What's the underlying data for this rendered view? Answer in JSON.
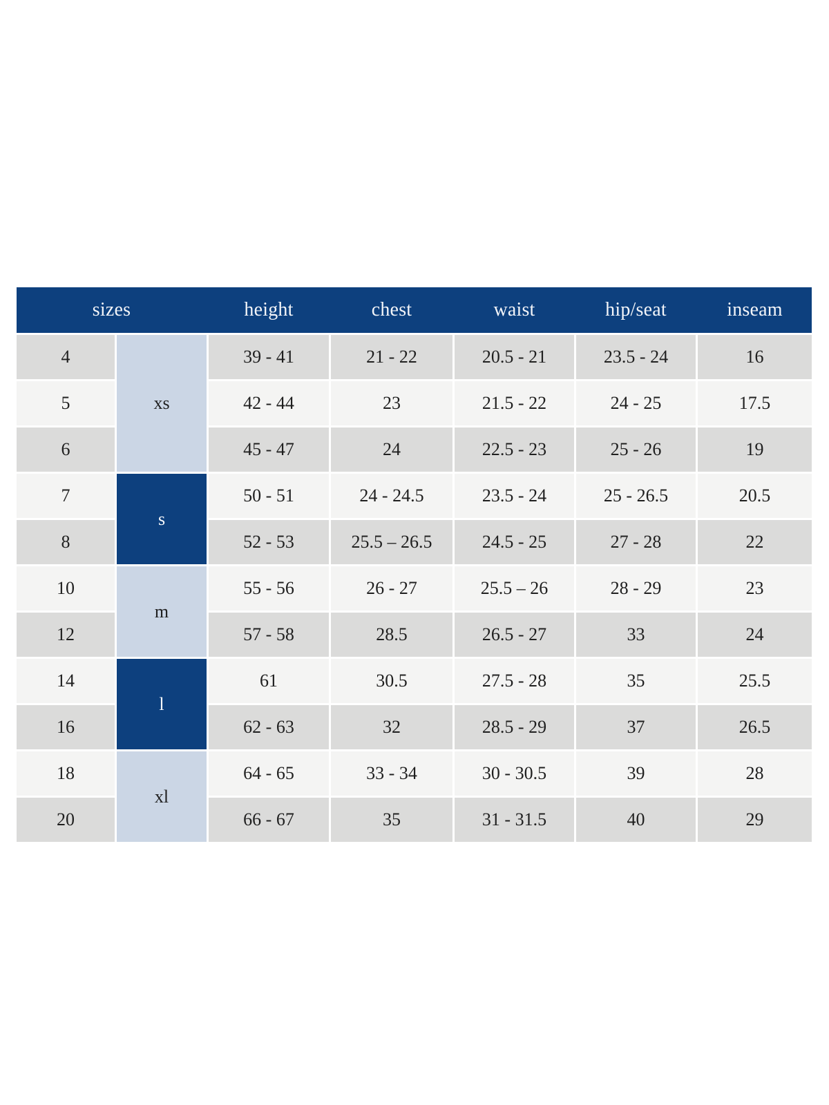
{
  "table": {
    "header": {
      "labels": [
        "sizes",
        "height",
        "chest",
        "waist",
        "hip/seat",
        "inseam"
      ]
    },
    "groups": [
      {
        "label": "xs",
        "span_rows": 3,
        "style": "light"
      },
      {
        "label": "s",
        "span_rows": 2,
        "style": "dark"
      },
      {
        "label": "m",
        "span_rows": 2,
        "style": "light"
      },
      {
        "label": "l",
        "span_rows": 2,
        "style": "dark"
      },
      {
        "label": "xl",
        "span_rows": 2,
        "style": "light"
      }
    ],
    "rows": [
      [
        "4",
        "39 - 41",
        "21 - 22",
        "20.5 - 21",
        "23.5 - 24",
        "16"
      ],
      [
        "5",
        "42 - 44",
        "23",
        "21.5 - 22",
        "24 - 25",
        "17.5"
      ],
      [
        "6",
        "45 - 47",
        "24",
        "22.5 - 23",
        "25 - 26",
        "19"
      ],
      [
        "7",
        "50 - 51",
        "24 - 24.5",
        "23.5 - 24",
        "25 - 26.5",
        "20.5"
      ],
      [
        "8",
        "52 - 53",
        "25.5 – 26.5",
        "24.5 - 25",
        "27 - 28",
        "22"
      ],
      [
        "10",
        "55 - 56",
        "26 - 27",
        "25.5 – 26",
        "28 - 29",
        "23"
      ],
      [
        "12",
        "57 - 58",
        "28.5",
        "26.5 - 27",
        "33",
        "24"
      ],
      [
        "14",
        "61",
        "30.5",
        "27.5 - 28",
        "35",
        "25.5"
      ],
      [
        "16",
        "62 - 63",
        "32",
        "28.5 - 29",
        "37",
        "26.5"
      ],
      [
        "18",
        "64 - 65",
        "33 - 34",
        "30 - 30.5",
        "39",
        "28"
      ],
      [
        "20",
        "66 - 67",
        "35",
        "31 - 31.5",
        "40",
        "29"
      ]
    ],
    "colors": {
      "header_bg": "#0d407e",
      "header_text": "#f3f5f9",
      "group_light_bg": "#cbd6e5",
      "group_dark_bg": "#0d407e",
      "row_gray": "#dbdbda",
      "row_light": "#f4f4f3",
      "cell_text": "#1f1f1f"
    }
  }
}
